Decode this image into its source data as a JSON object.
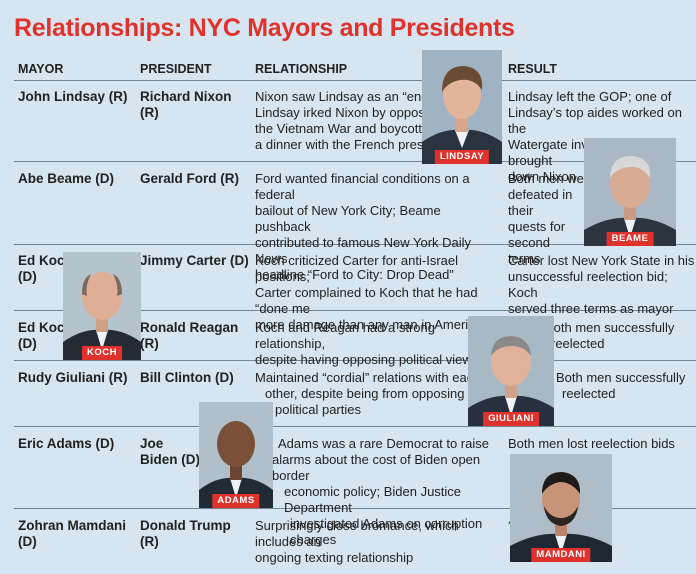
{
  "title": "Relationships: NYC Mayors and Presidents",
  "headers": {
    "mayor": "MAYOR",
    "president": "PRESIDENT",
    "relationship": "RELATIONSHIP",
    "result": "RESULT"
  },
  "rows": [
    {
      "mayor": "John Lindsay (R)",
      "president": "Richard Nixon (R)",
      "relationship": [
        "Nixon saw Lindsay as an “enemy”;",
        "Lindsay irked Nixon by opposing",
        "the Vietnam War and boycotting",
        "a dinner with the French president"
      ],
      "result": [
        "Lindsay left the GOP; one of",
        "Lindsay’s top aides worked on the",
        "Watergate investigation that brought",
        "down Nixon"
      ],
      "photo_label": "LINDSAY"
    },
    {
      "mayor": "Abe Beame (D)",
      "president": "Gerald Ford (R)",
      "relationship": [
        "Ford wanted financial conditions on a federal",
        "bailout of New York City; Beame pushback",
        "contributed to famous New York Daily News",
        "headline “Ford to City: Drop Dead”"
      ],
      "result": [
        "Both men were",
        "defeated in their",
        "quests for second",
        "terms"
      ],
      "photo_label": "BEAME"
    },
    {
      "mayor": [
        "Ed Koch",
        "(D)"
      ],
      "president": "Jimmy Carter (D)",
      "relationship": [
        "Koch criticized Carter for anti-Israel positions;",
        "Carter complained to Koch that he had “done me",
        "more damage than any man in America”"
      ],
      "result": [
        "Carter lost New York State in his",
        "unsuccessful reelection bid; Koch",
        "served three terms as mayor"
      ],
      "photo_label": "KOCH"
    },
    {
      "mayor": [
        "Ed Koch",
        "(D)"
      ],
      "president": "Ronald Reagan (R)",
      "relationship": [
        "Koch and Reagan had a strong relationship,",
        "despite having opposing political views"
      ],
      "result": [
        "Both men successfully",
        "reelected"
      ]
    },
    {
      "mayor": "Rudy Giuliani (R)",
      "president": "Bill Clinton (D)",
      "relationship": [
        "Maintained “cordial” relations with each",
        "other, despite being from opposing",
        "political parties"
      ],
      "result": [
        "Both men successfully",
        "reelected"
      ],
      "photo_label": "GIULIANI"
    },
    {
      "mayor": "Eric Adams (D)",
      "president": [
        "Joe",
        "Biden (D)"
      ],
      "relationship": [
        "Adams was a rare Democrat to raise",
        "alarms about the cost of Biden open border",
        "economic policy; Biden Justice Department",
        "investigated Adams on corruption charges"
      ],
      "result": [
        "Both men lost reelection bids"
      ],
      "photo_label": "ADAMS"
    },
    {
      "mayor": "Zohran Mamdani (D)",
      "president": "Donald Trump (R)",
      "relationship": [
        "Surprisingly close bromance, which includes an",
        "ongoing texting relationship"
      ],
      "result": [
        "???"
      ],
      "photo_label": "MAMDANI"
    }
  ]
}
